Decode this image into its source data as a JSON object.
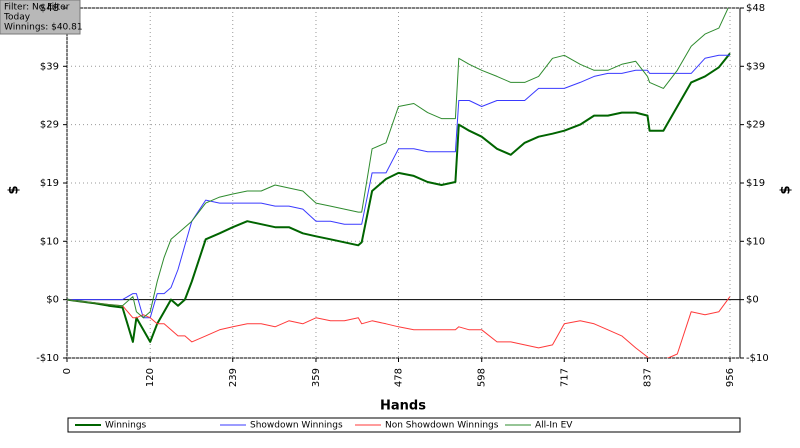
{
  "chart_data": {
    "type": "line",
    "annotations": [
      "Filter: No Filter",
      "Today",
      "Winnings: $40.81"
    ],
    "xlabel": "Hands",
    "ylabel": "$",
    "x": [
      0,
      20,
      40,
      60,
      80,
      95,
      100,
      110,
      120,
      130,
      140,
      150,
      160,
      170,
      180,
      200,
      220,
      239,
      260,
      280,
      300,
      320,
      340,
      359,
      380,
      400,
      420,
      425,
      440,
      460,
      478,
      500,
      520,
      540,
      560,
      565,
      580,
      598,
      620,
      640,
      660,
      680,
      700,
      717,
      740,
      760,
      780,
      800,
      820,
      837,
      840,
      860,
      880,
      900,
      920,
      940,
      956
    ],
    "series": [
      {
        "name": "Winnings",
        "color": "#006400",
        "values": [
          0,
          -0.3,
          -0.6,
          -1,
          -1.3,
          -7,
          -3,
          -5,
          -7,
          -4,
          -2,
          0,
          -1,
          0,
          3,
          10,
          11,
          12,
          13,
          12.5,
          12,
          12,
          11,
          10.5,
          10,
          9.5,
          9,
          9.5,
          18,
          20,
          21,
          20.5,
          19.5,
          19,
          19.5,
          29,
          28,
          27,
          25,
          24,
          26,
          27,
          27.5,
          28,
          29,
          30.5,
          30.5,
          31,
          31,
          30.5,
          28,
          28,
          32,
          36,
          37,
          38.5,
          40.8
        ]
      },
      {
        "name": "Showdown Winnings",
        "color": "#3a3aff",
        "values": [
          0,
          0,
          0,
          0,
          0,
          1,
          1,
          -3,
          -3,
          1,
          1,
          2,
          5,
          9,
          13,
          16.5,
          16,
          16,
          16,
          16,
          15.5,
          15.5,
          15,
          13,
          13,
          12.5,
          12.5,
          12.5,
          21,
          21,
          25,
          25,
          24.5,
          24.5,
          24.5,
          33,
          33,
          32,
          33,
          33,
          33,
          35,
          35,
          35,
          36,
          37,
          37.5,
          37.5,
          38,
          38,
          37.5,
          37.5,
          37.5,
          37.5,
          40,
          40.5,
          40.5
        ]
      },
      {
        "name": "Non Showdown Winnings",
        "color": "#ff3a3a",
        "values": [
          0,
          -0.3,
          -0.5,
          -0.8,
          -1,
          -3,
          -3,
          -2.5,
          -3,
          -4,
          -4,
          -5,
          -6,
          -6,
          -7,
          -6,
          -5,
          -4.5,
          -4,
          -4,
          -4.5,
          -3.5,
          -4,
          -3,
          -3.5,
          -3.5,
          -3,
          -4,
          -3.5,
          -4,
          -4.5,
          -5,
          -5,
          -5,
          -5,
          -4.5,
          -5,
          -5,
          -7,
          -7,
          -7.5,
          -8,
          -7.5,
          -4,
          -3.5,
          -4,
          -5,
          -6,
          -8,
          -9.5,
          -10,
          -10,
          -9,
          -2,
          -2.5,
          -2,
          0.5
        ]
      },
      {
        "name": "All-In EV",
        "color": "#2e8b2e",
        "values": [
          0,
          -0.3,
          -0.5,
          -0.8,
          -1,
          0.5,
          -2,
          -3,
          -2,
          3,
          7,
          10,
          11,
          12,
          13,
          16,
          17,
          17.5,
          18,
          18,
          19,
          18.5,
          18,
          16,
          15.5,
          15,
          14.5,
          14.5,
          25,
          26,
          32,
          32.5,
          31,
          30,
          30,
          40,
          39,
          38,
          37,
          36,
          36,
          37,
          40,
          40.5,
          39,
          38,
          38,
          39,
          39.5,
          37,
          36,
          35,
          38,
          42,
          44,
          45,
          49
        ]
      }
    ],
    "xlim": [
      0,
      956
    ],
    "xticks": [
      0,
      120,
      239,
      359,
      478,
      598,
      717,
      837,
      956
    ],
    "ylim": [
      -9.67,
      48.33
    ],
    "yticks": [
      {
        "value": -9.67,
        "label": "-$10"
      },
      {
        "value": 0,
        "label": "$0"
      },
      {
        "value": 9.67,
        "label": "$10"
      },
      {
        "value": 19.33,
        "label": "$19"
      },
      {
        "value": 29,
        "label": "$29"
      },
      {
        "value": 38.67,
        "label": "$39"
      },
      {
        "value": 48.33,
        "label": "$48"
      }
    ],
    "grid": true,
    "legend": "bottom"
  }
}
